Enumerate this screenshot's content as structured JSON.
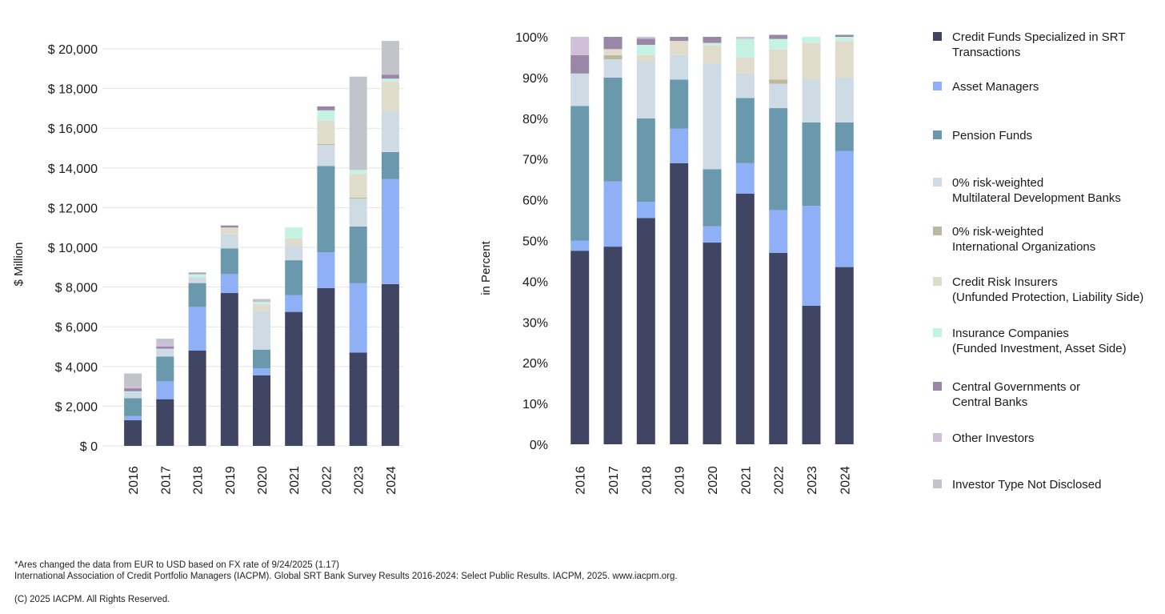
{
  "legend": [
    {
      "key": "credit_funds",
      "label": "Credit Funds Specialized in SRT\nTransactions",
      "color": "#404563"
    },
    {
      "key": "asset_managers",
      "label": "Asset Managers",
      "color": "#8fb0f7"
    },
    {
      "key": "pension_funds",
      "label": "Pension Funds",
      "color": "#6a98ad"
    },
    {
      "key": "mdb",
      "label": "0% risk-weighted\nMultilateral Development Banks",
      "color": "#cfdbe4"
    },
    {
      "key": "intl_org",
      "label": "0% risk-weighted\nInternational Organizations",
      "color": "#bdb7a0"
    },
    {
      "key": "credit_risk_insurers",
      "label": "Credit Risk Insurers\n(Unfunded Protection, Liability Side)",
      "color": "#e0dccb"
    },
    {
      "key": "insurance",
      "label": "Insurance Companies\n(Funded Investment, Asset Side)",
      "color": "#c4f2e3"
    },
    {
      "key": "central_gov",
      "label": "Central Governments or\nCentral Banks",
      "color": "#9a86a6"
    },
    {
      "key": "other",
      "label": "Other Investors",
      "color": "#cfbfd8"
    },
    {
      "key": "not_disclosed",
      "label": "Investor Type Not Disclosed",
      "color": "#c2c4cc"
    }
  ],
  "chart_data": [
    {
      "type": "bar",
      "stacked": true,
      "ylabel": "$ Million",
      "ylim": [
        0,
        21000
      ],
      "yticks": [
        0,
        2000,
        4000,
        6000,
        8000,
        10000,
        12000,
        14000,
        16000,
        18000,
        20000
      ],
      "ytick_labels": [
        "$ 0",
        "$ 2,000",
        "$ 4,000",
        "$ 6,000",
        "$ 8,000",
        "$ 10,000",
        "$ 12,000",
        "$ 14,000",
        "$ 16,000",
        "$ 18,000",
        "$ 20,000"
      ],
      "categories": [
        "2016",
        "2017",
        "2018",
        "2019",
        "2020",
        "2021",
        "2022",
        "2023",
        "2024"
      ],
      "grid": true,
      "series": [
        {
          "name": "Credit Funds Specialized in SRT Transactions",
          "values": [
            1300,
            2350,
            4800,
            7700,
            3550,
            6750,
            7950,
            4700,
            8150
          ]
        },
        {
          "name": "Asset Managers",
          "values": [
            200,
            900,
            2200,
            950,
            350,
            850,
            1800,
            3500,
            5300
          ]
        },
        {
          "name": "Pension Funds",
          "values": [
            900,
            1250,
            1200,
            1300,
            950,
            1750,
            4350,
            2850,
            1350
          ]
        },
        {
          "name": "0% risk-weighted Multilateral Development Banks",
          "values": [
            300,
            400,
            300,
            700,
            1950,
            750,
            1050,
            1400,
            2050
          ]
        },
        {
          "name": "0% risk-weighted International Organizations",
          "values": [
            0,
            0,
            0,
            0,
            0,
            0,
            50,
            50,
            0
          ]
        },
        {
          "name": "Credit Risk Insurers (Unfunded Protection, Liability Side)",
          "values": [
            0,
            0,
            0,
            350,
            350,
            350,
            1200,
            1200,
            1500
          ]
        },
        {
          "name": "Insurance Companies (Funded Investment, Asset Side)",
          "values": [
            50,
            0,
            150,
            0,
            100,
            550,
            500,
            200,
            150
          ]
        },
        {
          "name": "Central Governments or Central Banks",
          "values": [
            150,
            100,
            50,
            100,
            0,
            0,
            200,
            0,
            200
          ]
        },
        {
          "name": "Other Investors",
          "values": [
            100,
            200,
            50,
            0,
            0,
            0,
            0,
            0,
            0
          ]
        },
        {
          "name": "Investor Type Not Disclosed",
          "values": [
            650,
            200,
            0,
            0,
            150,
            0,
            0,
            4700,
            1700
          ]
        }
      ]
    },
    {
      "type": "bar",
      "stacked": true,
      "ylabel": "in Percent",
      "ylim": [
        0,
        100
      ],
      "yticks": [
        0,
        10,
        20,
        30,
        40,
        50,
        60,
        70,
        80,
        90,
        100
      ],
      "ytick_labels": [
        "0%",
        "10%",
        "20%",
        "30%",
        "40%",
        "50%",
        "60%",
        "70%",
        "80%",
        "90%",
        "100%"
      ],
      "categories": [
        "2016",
        "2017",
        "2018",
        "2019",
        "2020",
        "2021",
        "2022",
        "2023",
        "2024"
      ],
      "grid": false,
      "series": [
        {
          "name": "Credit Funds Specialized in SRT Transactions",
          "values": [
            47.5,
            48.5,
            55.5,
            69,
            49.5,
            61.5,
            47,
            34,
            43.5
          ]
        },
        {
          "name": "Asset Managers",
          "values": [
            2.5,
            16,
            4,
            8.5,
            4,
            7.5,
            10.5,
            24.5,
            28.5
          ]
        },
        {
          "name": "Pension Funds",
          "values": [
            33,
            25.5,
            20.5,
            12,
            14,
            16,
            25,
            20.5,
            7
          ]
        },
        {
          "name": "0% risk-weighted Multilateral Development Banks",
          "values": [
            8,
            4.5,
            14,
            6,
            26,
            6,
            6,
            10.5,
            11
          ]
        },
        {
          "name": "0% risk-weighted International Organizations",
          "values": [
            0,
            1,
            0,
            0,
            0,
            0,
            1,
            0,
            0
          ]
        },
        {
          "name": "Credit Risk Insurers (Unfunded Protection, Liability Side)",
          "values": [
            0,
            1.5,
            1.5,
            3.5,
            4.5,
            4,
            7.5,
            9,
            9
          ]
        },
        {
          "name": "Insurance Companies (Funded Investment, Asset Side)",
          "values": [
            0,
            0,
            2.5,
            0,
            0.5,
            4.5,
            2.5,
            1.5,
            1
          ]
        },
        {
          "name": "Central Governments or Central Banks",
          "values": [
            4.5,
            3,
            1.5,
            1,
            1.5,
            0,
            1,
            0,
            0.5
          ]
        },
        {
          "name": "Other Investors",
          "values": [
            4.5,
            0,
            0.5,
            0,
            0,
            0.5,
            0,
            0,
            0
          ]
        },
        {
          "name": "Investor Type Not Disclosed",
          "values": [
            0,
            0,
            0,
            0,
            0,
            0,
            0,
            0,
            0
          ]
        }
      ]
    }
  ],
  "footnotes": {
    "line1": "*Ares changed the data from EUR to USD based on FX rate of 9/24/2025 (1.17)",
    "line2": "International Association of Credit Portfolio Managers (IACPM). Global SRT Bank Survey Results 2016-2024: Select Public Results. IACPM, 2025. www.iacpm.org.",
    "line3": "(C) 2025 IACPM. All Rights Reserved."
  }
}
